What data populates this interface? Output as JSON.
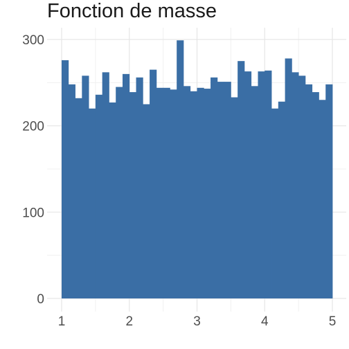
{
  "chart_data": {
    "type": "bar",
    "title": "Fonction de masse",
    "xlabel": "",
    "ylabel": "",
    "bar_color": "#3A6EA5",
    "grid": true,
    "xlim": [
      1,
      5
    ],
    "ylim": [
      0,
      300
    ],
    "x_ticks": [
      "1",
      "2",
      "3",
      "4",
      "5"
    ],
    "y_ticks": [
      "0",
      "100",
      "200",
      "300"
    ],
    "bin_start": 1,
    "bin_end": 5,
    "values": [
      276,
      248,
      232,
      258,
      220,
      236,
      262,
      227,
      245,
      260,
      239,
      256,
      225,
      265,
      244,
      244,
      242,
      299,
      246,
      240,
      244,
      243,
      256,
      251,
      251,
      233,
      275,
      263,
      246,
      263,
      264,
      220,
      228,
      278,
      262,
      258,
      248,
      239,
      230,
      248
    ]
  }
}
